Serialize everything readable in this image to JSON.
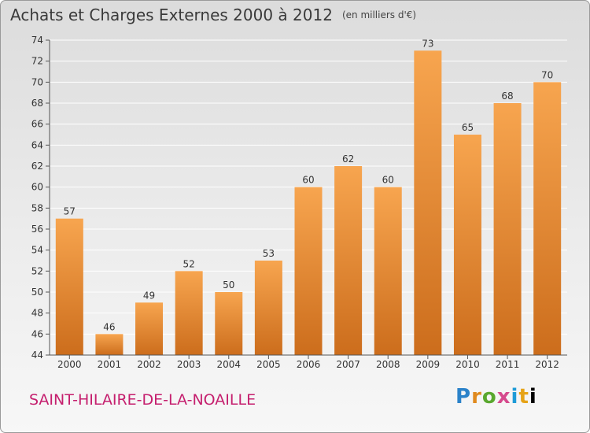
{
  "chart_data": {
    "type": "bar",
    "title": "Achats et Charges Externes 2000 à 2012",
    "unit_label": "(en milliers d'€)",
    "categories": [
      "2000",
      "2001",
      "2002",
      "2003",
      "2004",
      "2005",
      "2006",
      "2007",
      "2008",
      "2009",
      "2010",
      "2011",
      "2012"
    ],
    "values": [
      57,
      46,
      49,
      52,
      50,
      53,
      60,
      62,
      60,
      73,
      65,
      68,
      70
    ],
    "ylim": [
      44,
      74
    ],
    "yticks": [
      44,
      46,
      48,
      50,
      52,
      54,
      56,
      58,
      60,
      62,
      64,
      66,
      68,
      70,
      72,
      74
    ],
    "xlabel": "",
    "ylabel": "",
    "grid": true,
    "bar_color_top": "#f7a54f",
    "bar_color_bottom": "#cc6d1c"
  },
  "footer": {
    "commune": "SAINT-HILAIRE-DE-LA-NOAILLE",
    "brand_letters": [
      "P",
      "r",
      "o",
      "x",
      "i",
      "t",
      "i"
    ]
  },
  "colors": {
    "commune": "#c51f6e",
    "grid": "#ffffff"
  }
}
